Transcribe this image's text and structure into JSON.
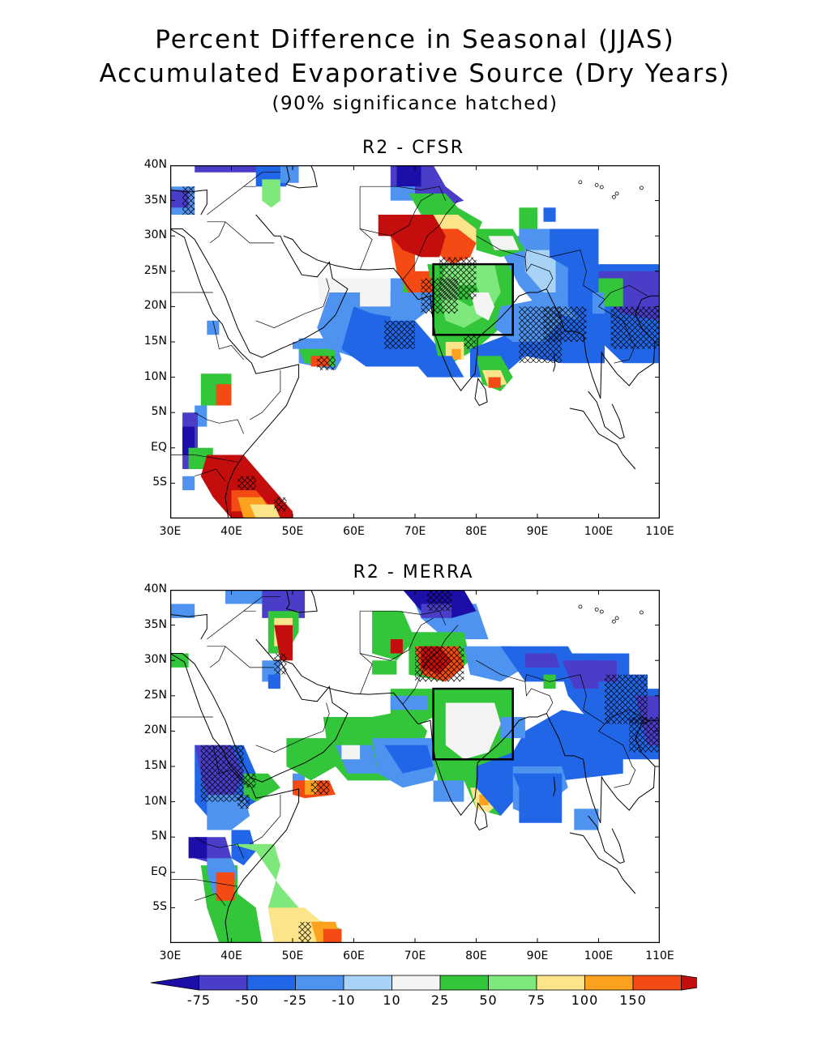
{
  "title": {
    "line1": "Percent Difference in Seasonal (JJAS)",
    "line2": "Accumulated Evaporative Source (Dry Years)",
    "line3": "(90% significance hatched)"
  },
  "panels": [
    {
      "id": "top",
      "title": "R2 - CFSR"
    },
    {
      "id": "bottom",
      "title": "R2 - MERRA"
    }
  ],
  "axes": {
    "lon_labels": [
      "30E",
      "40E",
      "50E",
      "60E",
      "70E",
      "80E",
      "90E",
      "100E",
      "110E"
    ],
    "lat_labels": [
      "40N",
      "35N",
      "30N",
      "25N",
      "20N",
      "15N",
      "10N",
      "5N",
      "EQ",
      "5S"
    ],
    "lon_range": [
      30,
      110
    ],
    "lat_range": [
      -10,
      40
    ]
  },
  "region_box": {
    "lon": [
      73,
      86
    ],
    "lat": [
      16,
      26
    ]
  },
  "colorbar": {
    "labels": [
      "-75",
      "-50",
      "-25",
      "-10",
      "10",
      "25",
      "50",
      "75",
      "100",
      "150"
    ],
    "unit": "%",
    "colors": [
      "#1c0ea8",
      "#4a3ec9",
      "#2266e8",
      "#4d93ef",
      "#a8d3f7",
      "#f4f4f4",
      "#33c53a",
      "#7ee87c",
      "#fbe48a",
      "#fca21e",
      "#f44a14",
      "#c40d0d"
    ]
  }
}
